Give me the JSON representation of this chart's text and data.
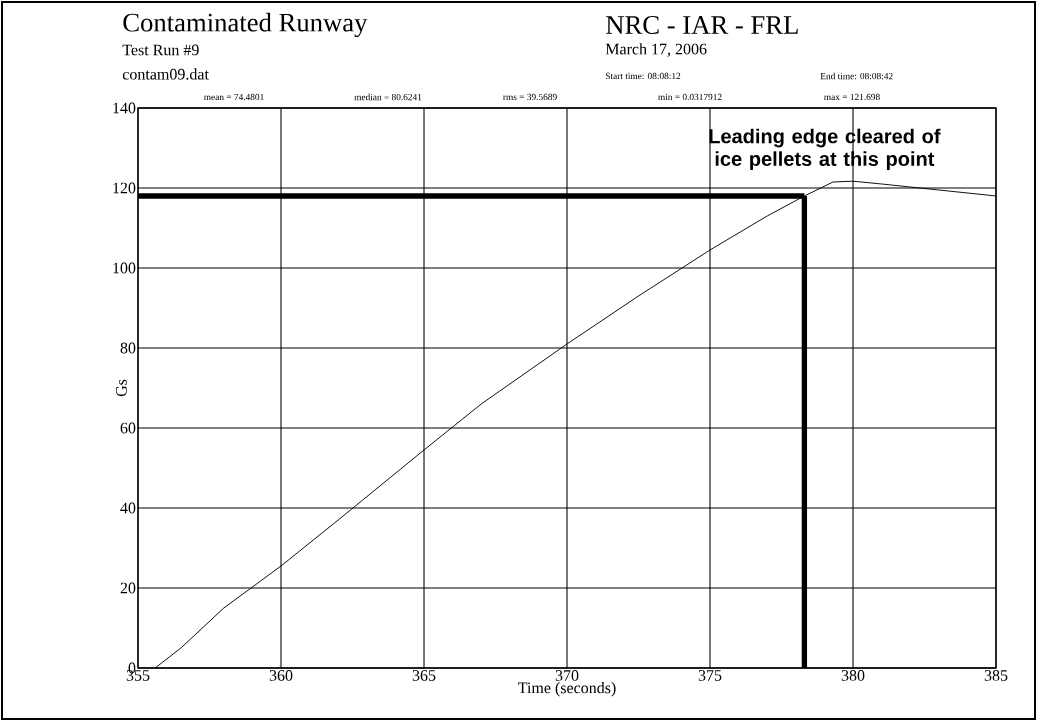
{
  "chart_data": {
    "type": "line",
    "title": "Contaminated Runway",
    "subtitle": "Test Run #9",
    "xlabel": "Time (seconds)",
    "ylabel": "Gs",
    "annotations": [
      "contam09.dat",
      "NRC - IAR - FRL",
      "March 17, 2006",
      "Start time: 08:08:12",
      "End time: 08:08:42",
      "mean = 74.4801",
      "median = 80.6241",
      "rms = 39.5689",
      "min = 0.0317912",
      "max = 121.698",
      {
        "text": "Leading edge cleared of ice pellets at this point",
        "x": 378.3,
        "y": 118
      }
    ],
    "x": [
      355.6,
      356.5,
      358,
      360,
      362,
      365,
      367,
      370,
      372.5,
      375,
      377,
      378.3,
      379.3,
      380,
      381,
      383,
      385
    ],
    "series": [
      {
        "color": "#000000",
        "values": [
          0,
          5,
          15,
          25.5,
          37,
          54.5,
          66,
          81,
          93,
          104.5,
          113,
          118,
          121.5,
          121.7,
          121,
          119.5,
          118
        ]
      }
    ],
    "xlim": [
      355,
      385
    ],
    "xticks": [
      355,
      360,
      365,
      370,
      375,
      380,
      385
    ],
    "ylim": [
      0,
      140
    ],
    "yticks": [
      0,
      20,
      40,
      60,
      80,
      100,
      120,
      140
    ],
    "grid": true,
    "ref_lines": [
      {
        "axis": "y",
        "value": 118,
        "color": "#000000"
      },
      {
        "axis": "x",
        "value": 378.3,
        "color": "#000000"
      }
    ]
  }
}
